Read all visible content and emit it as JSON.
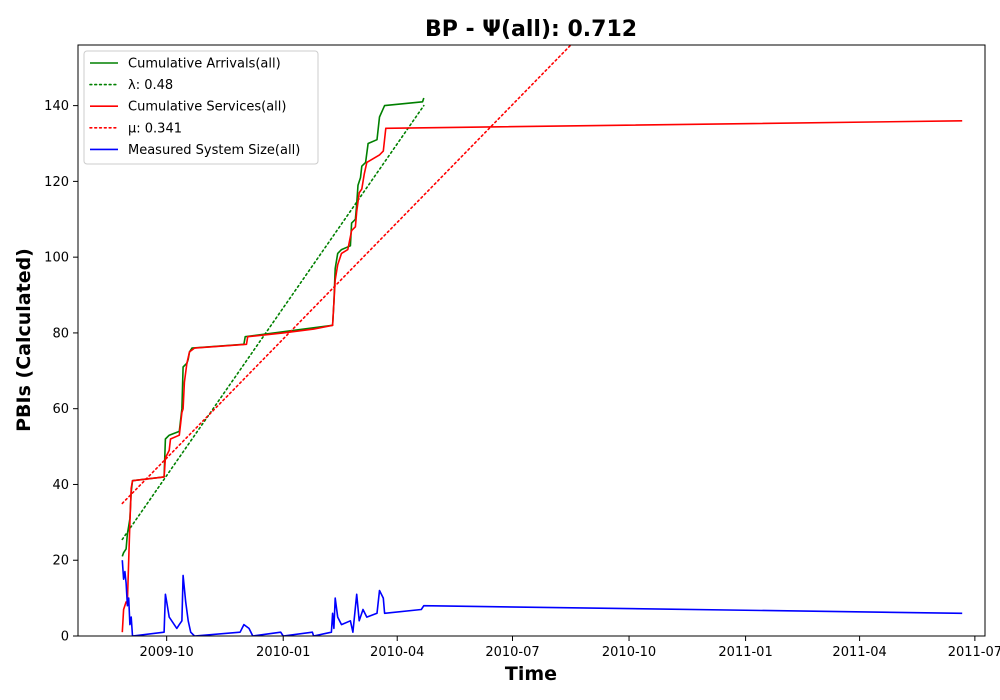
{
  "chart_data": {
    "type": "line",
    "title": "BP -  Ψ(all): 0.712",
    "xlabel": "Time",
    "ylabel": "PBIs (Calculated)",
    "xlim": [
      "2009-07-23",
      "2011-07-09"
    ],
    "ylim": [
      0,
      156
    ],
    "x_ticks": [
      "2009-10",
      "2010-01",
      "2010-04",
      "2010-07",
      "2010-10",
      "2011-01",
      "2011-04",
      "2011-07"
    ],
    "y_ticks": [
      0,
      20,
      40,
      60,
      80,
      100,
      120,
      140
    ],
    "grid": false,
    "legend_position": "top-left",
    "series": [
      {
        "name": "Cumulative Arrivals(all)",
        "style": "solid",
        "color": "#008000",
        "points": [
          [
            "2009-08-27",
            21
          ],
          [
            "2009-08-28",
            22
          ],
          [
            "2009-08-30",
            23
          ],
          [
            "2009-08-31",
            27
          ],
          [
            "2009-09-01",
            29
          ],
          [
            "2009-09-02",
            31
          ],
          [
            "2009-09-03",
            38
          ],
          [
            "2009-09-04",
            41
          ],
          [
            "2009-09-29",
            42
          ],
          [
            "2009-09-30",
            52
          ],
          [
            "2009-10-03",
            53
          ],
          [
            "2009-10-11",
            54
          ],
          [
            "2009-10-13",
            60
          ],
          [
            "2009-10-14",
            71
          ],
          [
            "2009-10-17",
            72
          ],
          [
            "2009-10-18",
            73
          ],
          [
            "2009-10-19",
            75
          ],
          [
            "2009-10-21",
            76
          ],
          [
            "2009-12-01",
            77
          ],
          [
            "2009-12-02",
            79
          ],
          [
            "2010-02-09",
            82
          ],
          [
            "2010-02-10",
            88
          ],
          [
            "2010-02-11",
            97
          ],
          [
            "2010-02-13",
            101
          ],
          [
            "2010-02-16",
            102
          ],
          [
            "2010-02-23",
            103
          ],
          [
            "2010-02-24",
            109
          ],
          [
            "2010-02-27",
            110
          ],
          [
            "2010-02-28",
            114
          ],
          [
            "2010-03-01",
            119
          ],
          [
            "2010-03-03",
            121
          ],
          [
            "2010-03-04",
            124
          ],
          [
            "2010-03-07",
            125
          ],
          [
            "2010-03-09",
            130
          ],
          [
            "2010-03-16",
            131
          ],
          [
            "2010-03-18",
            137
          ],
          [
            "2010-03-22",
            140
          ],
          [
            "2010-04-21",
            141
          ],
          [
            "2010-04-22",
            142
          ]
        ]
      },
      {
        "name": "λ: 0.48",
        "style": "dotted",
        "color": "#008000",
        "points": [
          [
            "2009-08-27",
            25.5
          ],
          [
            "2010-04-22",
            140
          ]
        ]
      },
      {
        "name": "Cumulative Services(all)",
        "style": "solid",
        "color": "#ff0000",
        "points": [
          [
            "2009-08-27",
            1
          ],
          [
            "2009-08-28",
            7
          ],
          [
            "2009-08-30",
            9
          ],
          [
            "2009-08-31",
            9
          ],
          [
            "2009-09-01",
            20
          ],
          [
            "2009-09-02",
            30
          ],
          [
            "2009-09-03",
            39
          ],
          [
            "2009-09-04",
            41
          ],
          [
            "2009-09-29",
            42
          ],
          [
            "2009-09-30",
            47
          ],
          [
            "2009-10-03",
            49
          ],
          [
            "2009-10-04",
            52
          ],
          [
            "2009-10-11",
            53
          ],
          [
            "2009-10-13",
            59
          ],
          [
            "2009-10-14",
            60
          ],
          [
            "2009-10-15",
            67
          ],
          [
            "2009-10-17",
            72
          ],
          [
            "2009-10-19",
            75
          ],
          [
            "2009-10-23",
            76
          ],
          [
            "2009-12-03",
            77
          ],
          [
            "2009-12-04",
            79
          ],
          [
            "2010-01-01",
            80
          ],
          [
            "2010-01-25",
            81
          ],
          [
            "2010-02-09",
            82
          ],
          [
            "2010-02-11",
            94
          ],
          [
            "2010-02-13",
            98
          ],
          [
            "2010-02-16",
            101
          ],
          [
            "2010-02-21",
            102
          ],
          [
            "2010-02-24",
            107
          ],
          [
            "2010-02-27",
            108
          ],
          [
            "2010-02-28",
            112
          ],
          [
            "2010-03-02",
            117
          ],
          [
            "2010-03-04",
            118
          ],
          [
            "2010-03-06",
            122
          ],
          [
            "2010-03-08",
            125
          ],
          [
            "2010-03-18",
            127
          ],
          [
            "2010-03-21",
            128
          ],
          [
            "2010-03-23",
            134
          ],
          [
            "2011-06-21",
            136
          ]
        ]
      },
      {
        "name": "μ: 0.341",
        "style": "dotted",
        "color": "#ff0000",
        "points": [
          [
            "2009-08-27",
            35
          ],
          [
            "2010-08-16",
            156
          ]
        ]
      },
      {
        "name": "Measured System Size(all)",
        "style": "solid",
        "color": "#0000ff",
        "points": [
          [
            "2009-08-27",
            20
          ],
          [
            "2009-08-28",
            15
          ],
          [
            "2009-08-29",
            17
          ],
          [
            "2009-08-30",
            14
          ],
          [
            "2009-08-31",
            8
          ],
          [
            "2009-09-01",
            10
          ],
          [
            "2009-09-02",
            3
          ],
          [
            "2009-09-03",
            5
          ],
          [
            "2009-09-04",
            0
          ],
          [
            "2009-09-29",
            1
          ],
          [
            "2009-09-30",
            11
          ],
          [
            "2009-10-01",
            9
          ],
          [
            "2009-10-03",
            5
          ],
          [
            "2009-10-05",
            4
          ],
          [
            "2009-10-09",
            2
          ],
          [
            "2009-10-11",
            3
          ],
          [
            "2009-10-13",
            4
          ],
          [
            "2009-10-14",
            16
          ],
          [
            "2009-10-16",
            9
          ],
          [
            "2009-10-18",
            4
          ],
          [
            "2009-10-20",
            1
          ],
          [
            "2009-10-23",
            0
          ],
          [
            "2009-11-28",
            1
          ],
          [
            "2009-12-01",
            3
          ],
          [
            "2009-12-05",
            2
          ],
          [
            "2009-12-08",
            0
          ],
          [
            "2009-12-30",
            1
          ],
          [
            "2010-01-01",
            0
          ],
          [
            "2010-01-24",
            1
          ],
          [
            "2010-01-25",
            0
          ],
          [
            "2010-02-08",
            1
          ],
          [
            "2010-02-09",
            6
          ],
          [
            "2010-02-10",
            2
          ],
          [
            "2010-02-11",
            10
          ],
          [
            "2010-02-13",
            5
          ],
          [
            "2010-02-16",
            3
          ],
          [
            "2010-02-23",
            4
          ],
          [
            "2010-02-25",
            1
          ],
          [
            "2010-02-28",
            11
          ],
          [
            "2010-03-02",
            4
          ],
          [
            "2010-03-05",
            7
          ],
          [
            "2010-03-08",
            5
          ],
          [
            "2010-03-16",
            6
          ],
          [
            "2010-03-18",
            12
          ],
          [
            "2010-03-21",
            10
          ],
          [
            "2010-03-22",
            6
          ],
          [
            "2010-04-20",
            7
          ],
          [
            "2010-04-22",
            8
          ],
          [
            "2011-06-21",
            6
          ]
        ]
      }
    ]
  }
}
